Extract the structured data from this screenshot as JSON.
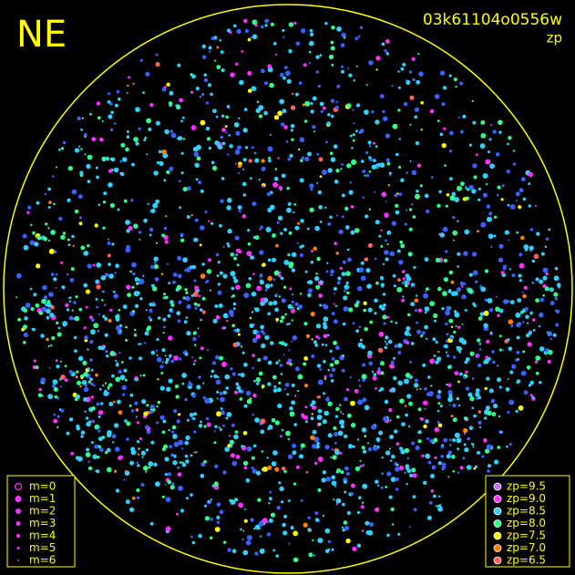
{
  "header": {
    "camera": "NE",
    "frame": "03k61104o0556w",
    "mode": "zp"
  },
  "magnitude_legend": [
    {
      "label": "m=0",
      "radius": 3.5,
      "ring": true
    },
    {
      "label": "m=1",
      "radius": 3.5,
      "ring": false
    },
    {
      "label": "m=2",
      "radius": 3,
      "ring": false
    },
    {
      "label": "m=3",
      "radius": 2.5,
      "ring": false
    },
    {
      "label": "m=4",
      "radius": 2,
      "ring": false
    },
    {
      "label": "m=5",
      "radius": 1.5,
      "ring": false
    },
    {
      "label": "m=6",
      "radius": 1,
      "ring": false
    }
  ],
  "zp_legend": [
    {
      "label": "zp=9.5",
      "color": "#c070ff"
    },
    {
      "label": "zp=9.0",
      "color": "#ff30ff"
    },
    {
      "label": "zp=8.5",
      "color": "#30d0ff"
    },
    {
      "label": "zp=8.0",
      "color": "#30ff90"
    },
    {
      "label": "zp=7.5",
      "color": "#ffff00"
    },
    {
      "label": "zp=7.0",
      "color": "#ff8000"
    },
    {
      "label": "zp=6.5",
      "color": "#ff6060"
    }
  ]
}
